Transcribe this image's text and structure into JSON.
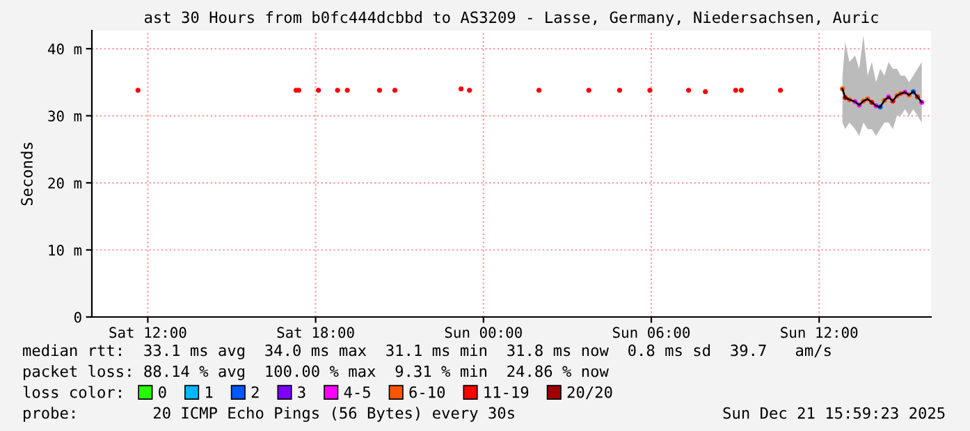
{
  "chart_data": {
    "type": "line",
    "title": "ast 30 Hours from b0fc444dcbbd to AS3209 - Lasse, Germany, Niedersachsen, Auric",
    "ylabel": "Seconds",
    "xlim": [
      "2025-12-20T10:00",
      "2025-12-21T16:00"
    ],
    "xticks": [
      {
        "value": "2025-12-20T12:00",
        "label": "Sat 12:00"
      },
      {
        "value": "2025-12-20T18:00",
        "label": "Sat 18:00"
      },
      {
        "value": "2025-12-21T00:00",
        "label": "Sun 00:00"
      },
      {
        "value": "2025-12-21T06:00",
        "label": "Sun 06:00"
      },
      {
        "value": "2025-12-21T12:00",
        "label": "Sun 12:00"
      }
    ],
    "ylim": [
      0,
      42.7
    ],
    "yticks": [
      0,
      {
        "value": 10,
        "label": "10 m"
      },
      {
        "value": 20,
        "label": "20 m"
      },
      {
        "value": 30,
        "label": "30 m"
      },
      {
        "value": 40,
        "label": "40 m"
      }
    ],
    "grid": true,
    "legend": "bottom",
    "legend_title": "loss color:",
    "series": [
      {
        "color": "#000000",
        "x": [
          "2025-12-21T12:50",
          "2025-12-21T12:56",
          "2025-12-21T13:05",
          "2025-12-21T13:17",
          "2025-12-21T13:26",
          "2025-12-21T13:35",
          "2025-12-21T13:44",
          "2025-12-21T13:53",
          "2025-12-21T14:02",
          "2025-12-21T14:11",
          "2025-12-21T14:20",
          "2025-12-21T14:29",
          "2025-12-21T14:38",
          "2025-12-21T14:47",
          "2025-12-21T14:55",
          "2025-12-21T15:04",
          "2025-12-21T15:13",
          "2025-12-21T15:22",
          "2025-12-21T15:31",
          "2025-12-21T15:40"
        ],
        "values": [
          34.0,
          32.7,
          32.4,
          32.1,
          31.6,
          32.2,
          32.5,
          32.0,
          31.5,
          31.3,
          32.3,
          32.8,
          32.2,
          33.0,
          33.3,
          33.5,
          33.1,
          33.6,
          32.8,
          32.0
        ],
        "lower": [
          29,
          28,
          29,
          28,
          27,
          29,
          28,
          28,
          27,
          28,
          29,
          29,
          28,
          30,
          30,
          31,
          30,
          31,
          30,
          29
        ],
        "upper": [
          36,
          41,
          38,
          39,
          37,
          42,
          36,
          38,
          35,
          37,
          36,
          38,
          37,
          37,
          36,
          36,
          35,
          36,
          37,
          38
        ]
      },
      {
        "type": "scatter",
        "name": "0",
        "color": "#26ff00"
      },
      {
        "type": "scatter",
        "name": "1",
        "color": "#00b8ff"
      },
      {
        "type": "scatter",
        "name": "2",
        "color": "#0059ff",
        "x": [
          "2025-12-21T14:11",
          "2025-12-21T15:22"
        ],
        "values": [
          31.3,
          33.6
        ]
      },
      {
        "type": "scatter",
        "name": "3",
        "color": "#7e00ff"
      },
      {
        "type": "scatter",
        "name": "4-5",
        "color": "#ff00ff",
        "x": [
          "2025-12-21T13:17",
          "2025-12-21T13:26",
          "2025-12-21T14:02",
          "2025-12-21T14:29",
          "2025-12-21T15:04",
          "2025-12-21T15:40"
        ],
        "values": [
          32.1,
          31.6,
          31.5,
          32.8,
          33.5,
          32.0
        ]
      },
      {
        "type": "scatter",
        "name": "6-10",
        "color": "#ff5500",
        "x": [
          "2025-12-21T12:50",
          "2025-12-21T13:05",
          "2025-12-21T13:35",
          "2025-12-21T13:44",
          "2025-12-21T14:20",
          "2025-12-21T14:47",
          "2025-12-21T14:55",
          "2025-12-21T15:13"
        ],
        "values": [
          34.0,
          32.4,
          32.2,
          32.5,
          32.3,
          33.0,
          33.3,
          33.1
        ]
      },
      {
        "type": "scatter",
        "name": "11-19",
        "color": "#ff0000",
        "x": [
          "2025-12-20T11:39",
          "2025-12-20T17:18",
          "2025-12-20T17:24",
          "2025-12-20T18:06",
          "2025-12-20T18:47",
          "2025-12-20T19:08",
          "2025-12-20T20:17",
          "2025-12-20T20:50",
          "2025-12-20T23:12",
          "2025-12-20T23:30",
          "2025-12-21T01:59",
          "2025-12-21T03:46",
          "2025-12-21T04:52",
          "2025-12-21T05:57",
          "2025-12-21T07:20",
          "2025-12-21T07:56",
          "2025-12-21T09:01",
          "2025-12-21T09:13",
          "2025-12-21T10:37",
          "2025-12-21T12:56",
          "2025-12-21T13:53",
          "2025-12-21T14:38",
          "2025-12-21T15:31"
        ],
        "values": [
          33.8,
          33.8,
          33.8,
          33.8,
          33.8,
          33.8,
          33.8,
          33.8,
          34.0,
          33.8,
          33.8,
          33.8,
          33.8,
          33.8,
          33.8,
          33.6,
          33.8,
          33.8,
          33.8,
          32.7,
          32.0,
          32.2,
          32.8
        ]
      },
      {
        "type": "scatter",
        "name": "20/20",
        "color": "#a10000"
      }
    ],
    "annotations": [
      "median rtt:  33.1 ms avg  34.0 ms max  31.1 ms min  31.8 ms now  0.8 ms sd  39.7   am/s",
      "packet loss: 88.14 % avg  100.00 % max  9.31 % min  24.86 % now",
      "probe:        20 ICMP Echo Pings (56 Bytes) every 30s",
      "Sun Dec 21 15:59:23 2025"
    ]
  }
}
